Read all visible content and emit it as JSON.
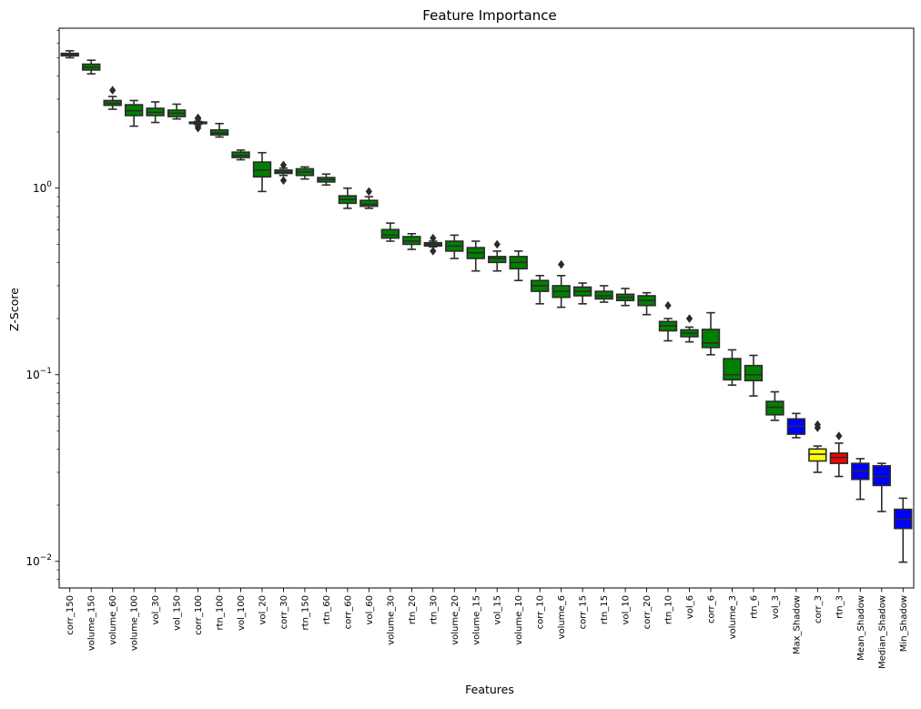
{
  "chart_data": {
    "type": "box",
    "title": "Feature Importance",
    "xlabel": "Features",
    "ylabel": "Z-Score",
    "yscale": "log",
    "ylim": [
      0.0072,
      7.2
    ],
    "yticks": [
      {
        "value": 0.01,
        "base": "10",
        "exp": "−2"
      },
      {
        "value": 0.1,
        "base": "10",
        "exp": "−1"
      },
      {
        "value": 1,
        "base": "10",
        "exp": "0"
      }
    ],
    "grid": false,
    "legend": "none",
    "colors": {
      "accepted": "#008000",
      "shadow": "#0000ff",
      "tentative": "#ffff00",
      "rejected": "#ff0000",
      "edge": "#2b2b2b"
    },
    "boxes": [
      {
        "label": "corr_150",
        "color": "accepted",
        "whislo": 5.0,
        "q1": 5.12,
        "med": 5.2,
        "q3": 5.28,
        "whishi": 5.45,
        "fliers": []
      },
      {
        "label": "volume_150",
        "color": "accepted",
        "whislo": 4.1,
        "q1": 4.3,
        "med": 4.45,
        "q3": 4.62,
        "whishi": 4.85,
        "fliers": []
      },
      {
        "label": "volume_60",
        "color": "accepted",
        "whislo": 2.65,
        "q1": 2.78,
        "med": 2.85,
        "q3": 2.95,
        "whishi": 3.1,
        "fliers": [
          3.35
        ]
      },
      {
        "label": "volume_100",
        "color": "accepted",
        "whislo": 2.15,
        "q1": 2.45,
        "med": 2.6,
        "q3": 2.8,
        "whishi": 2.95,
        "fliers": []
      },
      {
        "label": "vol_30",
        "color": "accepted",
        "whislo": 2.25,
        "q1": 2.45,
        "med": 2.55,
        "q3": 2.68,
        "whishi": 2.9,
        "fliers": []
      },
      {
        "label": "vol_150",
        "color": "accepted",
        "whislo": 2.35,
        "q1": 2.42,
        "med": 2.52,
        "q3": 2.62,
        "whishi": 2.82,
        "fliers": []
      },
      {
        "label": "corr_100",
        "color": "accepted",
        "whislo": 2.2,
        "q1": 2.22,
        "med": 2.24,
        "q3": 2.26,
        "whishi": 2.28,
        "fliers": [
          2.1,
          2.15,
          2.35,
          2.38
        ]
      },
      {
        "label": "rtn_100",
        "color": "accepted",
        "whislo": 1.88,
        "q1": 1.93,
        "med": 1.98,
        "q3": 2.05,
        "whishi": 2.22,
        "fliers": []
      },
      {
        "label": "vol_100",
        "color": "accepted",
        "whislo": 1.42,
        "q1": 1.46,
        "med": 1.5,
        "q3": 1.56,
        "whishi": 1.6,
        "fliers": []
      },
      {
        "label": "vol_20",
        "color": "accepted",
        "whislo": 0.96,
        "q1": 1.15,
        "med": 1.25,
        "q3": 1.38,
        "whishi": 1.55,
        "fliers": []
      },
      {
        "label": "corr_30",
        "color": "accepted",
        "whislo": 1.17,
        "q1": 1.2,
        "med": 1.22,
        "q3": 1.25,
        "whishi": 1.28,
        "fliers": [
          1.1,
          1.33
        ]
      },
      {
        "label": "rtn_150",
        "color": "accepted",
        "whislo": 1.12,
        "q1": 1.17,
        "med": 1.22,
        "q3": 1.27,
        "whishi": 1.3,
        "fliers": []
      },
      {
        "label": "rtn_60",
        "color": "accepted",
        "whislo": 1.04,
        "q1": 1.08,
        "med": 1.11,
        "q3": 1.14,
        "whishi": 1.19,
        "fliers": []
      },
      {
        "label": "corr_60",
        "color": "accepted",
        "whislo": 0.78,
        "q1": 0.83,
        "med": 0.87,
        "q3": 0.91,
        "whishi": 1.0,
        "fliers": []
      },
      {
        "label": "vol_60",
        "color": "accepted",
        "whislo": 0.78,
        "q1": 0.8,
        "med": 0.82,
        "q3": 0.86,
        "whishi": 0.9,
        "fliers": [
          0.96
        ]
      },
      {
        "label": "volume_30",
        "color": "accepted",
        "whislo": 0.52,
        "q1": 0.54,
        "med": 0.56,
        "q3": 0.6,
        "whishi": 0.65,
        "fliers": []
      },
      {
        "label": "rtn_20",
        "color": "accepted",
        "whislo": 0.47,
        "q1": 0.5,
        "med": 0.52,
        "q3": 0.55,
        "whishi": 0.57,
        "fliers": []
      },
      {
        "label": "rtn_30",
        "color": "accepted",
        "whislo": 0.485,
        "q1": 0.49,
        "med": 0.5,
        "q3": 0.51,
        "whishi": 0.52,
        "fliers": [
          0.46,
          0.54
        ]
      },
      {
        "label": "volume_20",
        "color": "accepted",
        "whislo": 0.42,
        "q1": 0.46,
        "med": 0.49,
        "q3": 0.52,
        "whishi": 0.56,
        "fliers": []
      },
      {
        "label": "volume_15",
        "color": "accepted",
        "whislo": 0.36,
        "q1": 0.42,
        "med": 0.45,
        "q3": 0.48,
        "whishi": 0.52,
        "fliers": []
      },
      {
        "label": "vol_15",
        "color": "accepted",
        "whislo": 0.36,
        "q1": 0.4,
        "med": 0.42,
        "q3": 0.43,
        "whishi": 0.46,
        "fliers": [
          0.5
        ]
      },
      {
        "label": "volume_10",
        "color": "accepted",
        "whislo": 0.32,
        "q1": 0.37,
        "med": 0.4,
        "q3": 0.43,
        "whishi": 0.46,
        "fliers": []
      },
      {
        "label": "corr_10",
        "color": "accepted",
        "whislo": 0.24,
        "q1": 0.28,
        "med": 0.3,
        "q3": 0.32,
        "whishi": 0.34,
        "fliers": []
      },
      {
        "label": "volume_6",
        "color": "accepted",
        "whislo": 0.23,
        "q1": 0.26,
        "med": 0.28,
        "q3": 0.3,
        "whishi": 0.34,
        "fliers": [
          0.39
        ]
      },
      {
        "label": "corr_15",
        "color": "accepted",
        "whislo": 0.24,
        "q1": 0.265,
        "med": 0.28,
        "q3": 0.295,
        "whishi": 0.31,
        "fliers": []
      },
      {
        "label": "rtn_15",
        "color": "accepted",
        "whislo": 0.245,
        "q1": 0.255,
        "med": 0.265,
        "q3": 0.28,
        "whishi": 0.3,
        "fliers": []
      },
      {
        "label": "vol_10",
        "color": "accepted",
        "whislo": 0.235,
        "q1": 0.25,
        "med": 0.26,
        "q3": 0.27,
        "whishi": 0.29,
        "fliers": []
      },
      {
        "label": "corr_20",
        "color": "accepted",
        "whislo": 0.21,
        "q1": 0.235,
        "med": 0.25,
        "q3": 0.265,
        "whishi": 0.275,
        "fliers": []
      },
      {
        "label": "rtn_10",
        "color": "accepted",
        "whislo": 0.152,
        "q1": 0.172,
        "med": 0.183,
        "q3": 0.193,
        "whishi": 0.2,
        "fliers": [
          0.235
        ]
      },
      {
        "label": "vol_6",
        "color": "accepted",
        "whislo": 0.15,
        "q1": 0.16,
        "med": 0.167,
        "q3": 0.174,
        "whishi": 0.18,
        "fliers": [
          0.2
        ]
      },
      {
        "label": "corr_6",
        "color": "accepted",
        "whislo": 0.128,
        "q1": 0.14,
        "med": 0.148,
        "q3": 0.175,
        "whishi": 0.215,
        "fliers": []
      },
      {
        "label": "volume_3",
        "color": "accepted",
        "whislo": 0.088,
        "q1": 0.094,
        "med": 0.1,
        "q3": 0.122,
        "whishi": 0.136,
        "fliers": []
      },
      {
        "label": "rtn_6",
        "color": "accepted",
        "whislo": 0.077,
        "q1": 0.093,
        "med": 0.1,
        "q3": 0.112,
        "whishi": 0.127,
        "fliers": []
      },
      {
        "label": "vol_3",
        "color": "accepted",
        "whislo": 0.057,
        "q1": 0.061,
        "med": 0.067,
        "q3": 0.072,
        "whishi": 0.081,
        "fliers": []
      },
      {
        "label": "Max_Shadow",
        "color": "shadow",
        "whislo": 0.046,
        "q1": 0.048,
        "med": 0.053,
        "q3": 0.058,
        "whishi": 0.062,
        "fliers": []
      },
      {
        "label": "corr_3",
        "color": "tentative",
        "whislo": 0.03,
        "q1": 0.0345,
        "med": 0.0375,
        "q3": 0.04,
        "whishi": 0.0415,
        "fliers": [
          0.052,
          0.054
        ]
      },
      {
        "label": "rtn_3",
        "color": "rejected",
        "whislo": 0.0285,
        "q1": 0.0335,
        "med": 0.036,
        "q3": 0.038,
        "whishi": 0.043,
        "fliers": [
          0.047
        ]
      },
      {
        "label": "Mean_Shadow",
        "color": "shadow",
        "whislo": 0.0215,
        "q1": 0.0275,
        "med": 0.0305,
        "q3": 0.0335,
        "whishi": 0.0355,
        "fliers": []
      },
      {
        "label": "Median_Shadow",
        "color": "shadow",
        "whislo": 0.0185,
        "q1": 0.0255,
        "med": 0.0285,
        "q3": 0.0325,
        "whishi": 0.0335,
        "fliers": []
      },
      {
        "label": "Min_Shadow",
        "color": "shadow",
        "whislo": 0.0099,
        "q1": 0.015,
        "med": 0.0168,
        "q3": 0.019,
        "whishi": 0.0218,
        "fliers": []
      }
    ]
  }
}
